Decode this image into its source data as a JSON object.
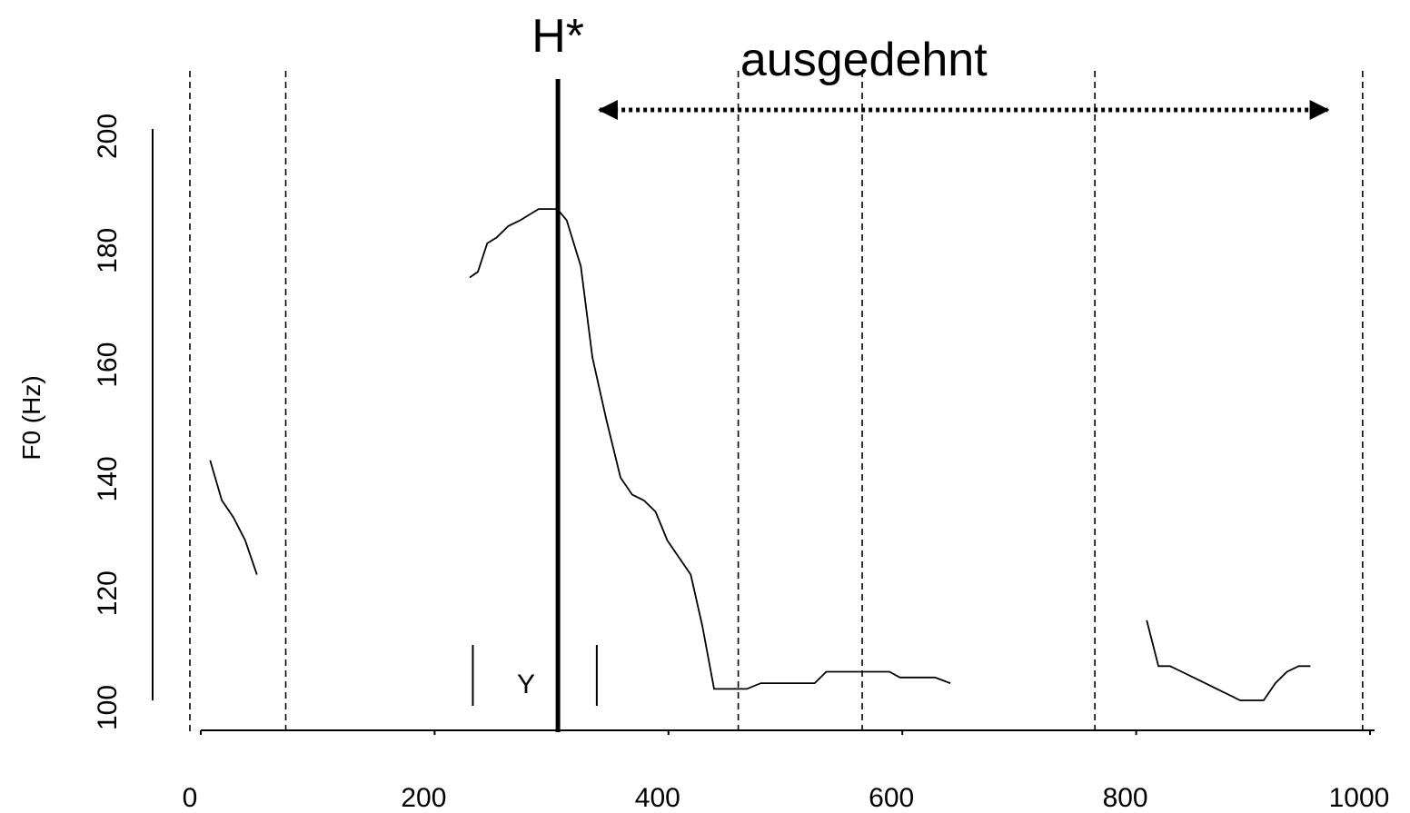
{
  "chart_data": {
    "type": "line",
    "title": "",
    "xlabel": "",
    "ylabel": "F0 (Hz)",
    "xlim": [
      0,
      1000
    ],
    "ylim": [
      100,
      200
    ],
    "x_ticks": [
      0,
      200,
      400,
      600,
      800,
      1000
    ],
    "y_ticks": [
      100,
      120,
      140,
      160,
      180,
      200
    ],
    "grid": false,
    "legend": "none",
    "boundaries": [
      0,
      82,
      469,
      575,
      774,
      1003
    ],
    "h_star": {
      "label": "H*",
      "x": 307
    },
    "span": {
      "label": "ausgedehnt",
      "from": 335,
      "to": 970
    },
    "y_marker": {
      "label": "Y",
      "left": 242,
      "right": 348
    },
    "series": [
      {
        "segments": [
          [
            [
              8,
              142
            ],
            [
              18,
              135
            ],
            [
              28,
              132
            ],
            [
              38,
              128
            ],
            [
              48,
              122
            ]
          ],
          [
            [
              230,
              174
            ],
            [
              237,
              175
            ],
            [
              245,
              180
            ],
            [
              253,
              181
            ],
            [
              263,
              183
            ],
            [
              273,
              184
            ],
            [
              281,
              185
            ],
            [
              289,
              186
            ],
            [
              297,
              186
            ],
            [
              305,
              186
            ],
            [
              313,
              184
            ],
            [
              325,
              176
            ],
            [
              335,
              160
            ],
            [
              347,
              149
            ],
            [
              359,
              139
            ],
            [
              369,
              136
            ],
            [
              379,
              135
            ],
            [
              389,
              133
            ],
            [
              399,
              128
            ],
            [
              409,
              125
            ],
            [
              419,
              122
            ],
            [
              429,
              113
            ],
            [
              439,
              102
            ],
            [
              467,
              102
            ],
            [
              479,
              103
            ],
            [
              515,
              103
            ],
            [
              525,
              103
            ],
            [
              535,
              105
            ],
            [
              547,
              105
            ],
            [
              557,
              105
            ],
            [
              567,
              105
            ],
            [
              589,
              105
            ],
            [
              598,
              104
            ],
            [
              618,
              104
            ],
            [
              628,
              104
            ],
            [
              641,
              103
            ]
          ],
          [
            [
              809,
              114
            ],
            [
              819,
              106
            ],
            [
              829,
              106
            ],
            [
              839,
              105
            ],
            [
              849,
              104
            ],
            [
              859,
              103
            ],
            [
              869,
              102
            ],
            [
              879,
              101
            ],
            [
              889,
              100
            ],
            [
              899,
              100
            ],
            [
              909,
              100
            ],
            [
              919,
              103
            ],
            [
              929,
              105
            ],
            [
              939,
              106
            ],
            [
              949,
              106
            ]
          ]
        ]
      }
    ]
  }
}
